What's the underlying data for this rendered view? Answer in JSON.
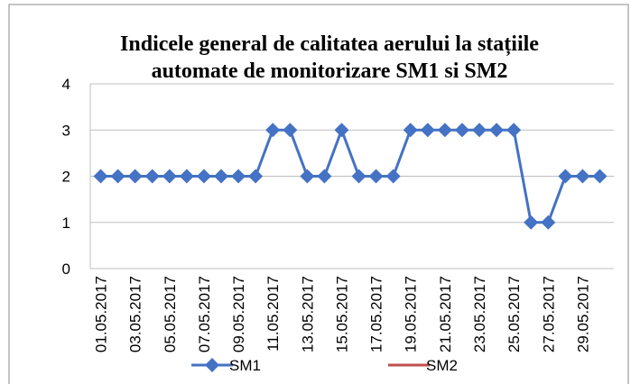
{
  "chart_data": {
    "type": "line",
    "title": "Indicele general de calitatea aerului la stațiile automate de monitorizare SM1 si SM2",
    "categories": [
      "01.05.2017",
      null,
      "03.05.2017",
      null,
      "05.05.2017",
      null,
      "07.05.2017",
      null,
      "09.05.2017",
      null,
      "11.05.2017",
      null,
      "13.05.2017",
      null,
      "15.05.2017",
      null,
      "17.05.2017",
      null,
      "19.05.2017",
      null,
      "21.05.2017",
      null,
      "23.05.2017",
      null,
      "25.05.2017",
      null,
      "27.05.2017",
      null,
      "29.05.2017",
      null
    ],
    "series": [
      {
        "name": "SM1",
        "color": "#4472c4",
        "values": [
          2,
          2,
          2,
          2,
          2,
          2,
          2,
          2,
          2,
          2,
          3,
          3,
          2,
          2,
          3,
          2,
          2,
          2,
          3,
          3,
          3,
          3,
          3,
          3,
          3,
          1,
          1,
          2,
          2,
          2
        ]
      },
      {
        "name": "SM2",
        "color": "#c0504d",
        "values": [
          null,
          null,
          null,
          null,
          null,
          null,
          null,
          null,
          null,
          null,
          null,
          null,
          null,
          null,
          null,
          null,
          null,
          null,
          null,
          null,
          null,
          null,
          null,
          null,
          null,
          null,
          null,
          null,
          null,
          null
        ]
      }
    ],
    "ylim": [
      0,
      4
    ],
    "yticks": [
      0,
      1,
      2,
      3,
      4
    ],
    "grid": true,
    "legend": "bottom"
  }
}
